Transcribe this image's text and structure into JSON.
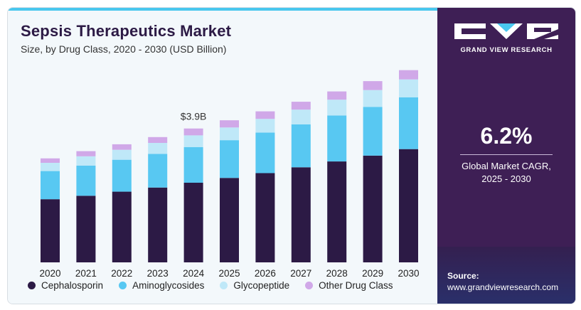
{
  "header": {
    "title": "Sepsis Therapeutics Market",
    "subtitle": "Size, by Drug Class, 2020 - 2030 (USD Billion)"
  },
  "sidebar": {
    "brand": "GRAND VIEW RESEARCH",
    "cagr_value": "6.2%",
    "cagr_label_line1": "Global Market CAGR,",
    "cagr_label_line2": "2025 - 2030",
    "source_label": "Source:",
    "source_url": "www.grandviewresearch.com"
  },
  "colors": {
    "cephalosporin": "#2c1a45",
    "aminoglycosides": "#58c8f2",
    "glycopeptide": "#bfe8f8",
    "other": "#d0a8e8",
    "accent": "#49c7ee",
    "panel": "#3e1f55"
  },
  "chart_data": {
    "type": "bar",
    "stacked": true,
    "categories": [
      "2020",
      "2021",
      "2022",
      "2023",
      "2024",
      "2025",
      "2026",
      "2027",
      "2028",
      "2029",
      "2030"
    ],
    "series": [
      {
        "name": "Cephalosporin",
        "values": [
          1.84,
          1.94,
          2.06,
          2.18,
          2.32,
          2.46,
          2.6,
          2.77,
          2.94,
          3.11,
          3.3
        ]
      },
      {
        "name": "Aminoglycosides",
        "values": [
          0.82,
          0.88,
          0.93,
          0.98,
          1.04,
          1.1,
          1.18,
          1.25,
          1.34,
          1.42,
          1.51
        ]
      },
      {
        "name": "Glycopeptide",
        "values": [
          0.24,
          0.27,
          0.29,
          0.32,
          0.34,
          0.37,
          0.4,
          0.43,
          0.46,
          0.49,
          0.52
        ]
      },
      {
        "name": "Other Drug Class",
        "values": [
          0.13,
          0.15,
          0.16,
          0.17,
          0.2,
          0.21,
          0.22,
          0.23,
          0.24,
          0.26,
          0.27
        ]
      }
    ],
    "annotations": [
      {
        "category": "2024",
        "text": "$3.9B"
      }
    ],
    "ylim": [
      0,
      5.8
    ],
    "grid": false,
    "legend": "bottom"
  }
}
